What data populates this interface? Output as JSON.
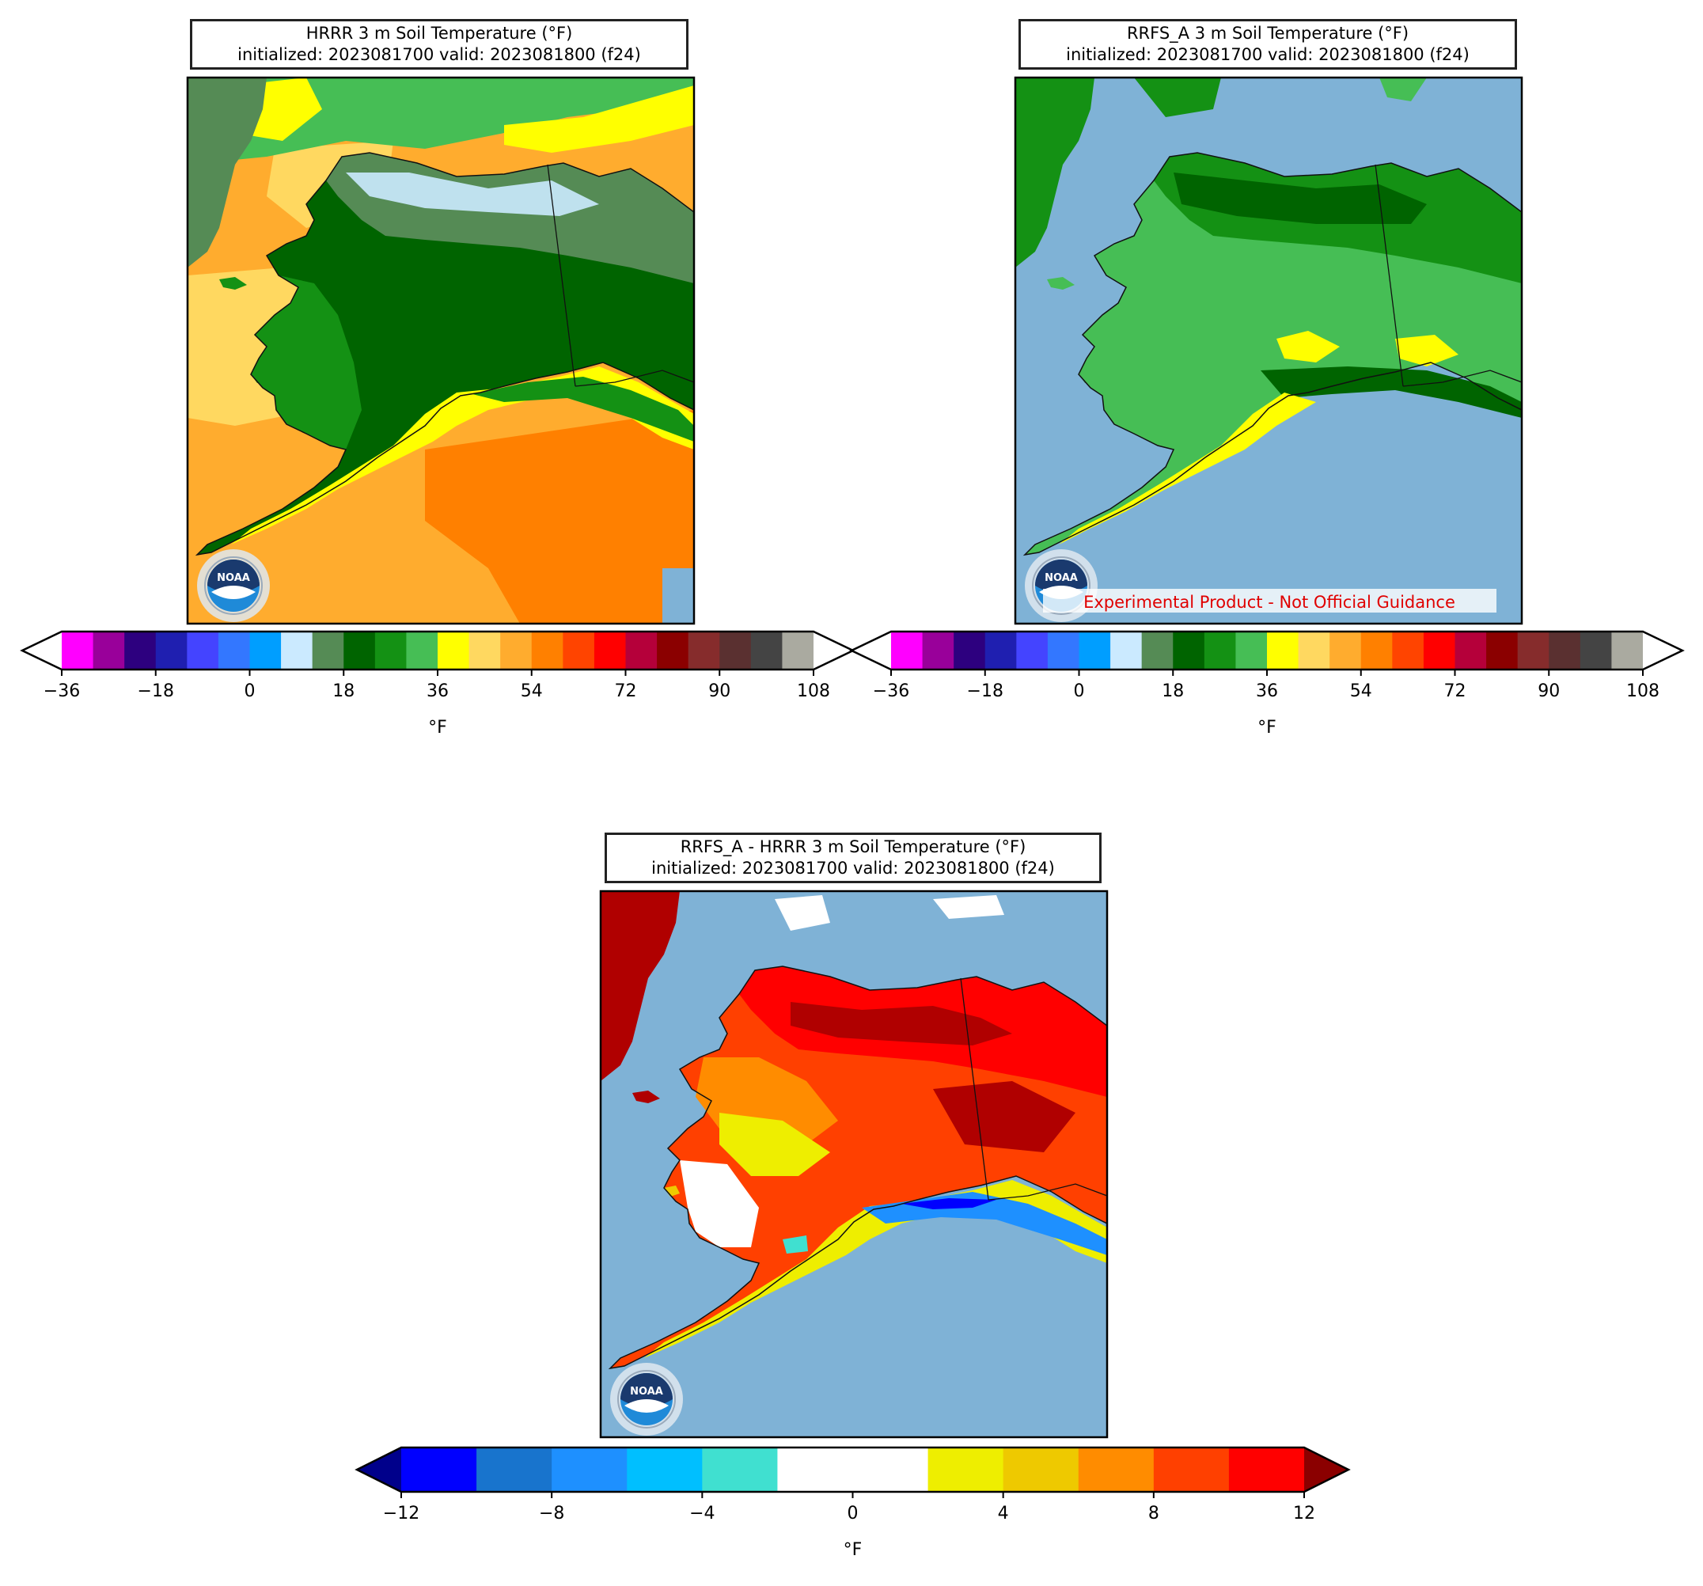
{
  "panels": [
    {
      "id": "hrrr",
      "title_line1": "HRRR 3 m Soil Temperature (°F)",
      "title_line2": "initialized: 2023081700 valid: 2023081800 (f24)",
      "logo_text": "NOAA",
      "watermark": "",
      "colorbar_unit": "°F",
      "colorbar_ticks": [
        "−36",
        "−18",
        "0",
        "18",
        "36",
        "54",
        "72",
        "90",
        "108"
      ],
      "colorbar_tick_values": [
        -36,
        -18,
        0,
        18,
        36,
        54,
        72,
        90,
        108
      ]
    },
    {
      "id": "rrfs",
      "title_line1": "RRFS_A 3 m Soil Temperature (°F)",
      "title_line2": "initialized: 2023081700 valid: 2023081800 (f24)",
      "logo_text": "NOAA",
      "watermark": "Experimental Product - Not Official Guidance",
      "colorbar_unit": "°F",
      "colorbar_ticks": [
        "−36",
        "−18",
        "0",
        "18",
        "36",
        "54",
        "72",
        "90",
        "108"
      ],
      "colorbar_tick_values": [
        -36,
        -18,
        0,
        18,
        36,
        54,
        72,
        90,
        108
      ]
    },
    {
      "id": "diff",
      "title_line1": "RRFS_A - HRRR 3 m Soil Temperature (°F)",
      "title_line2": "initialized: 2023081700 valid: 2023081800 (f24)",
      "logo_text": "NOAA",
      "watermark": "",
      "colorbar_unit": "°F",
      "colorbar_ticks": [
        "−12",
        "−8",
        "−4",
        "0",
        "4",
        "8",
        "12"
      ],
      "colorbar_tick_values": [
        -12,
        -8,
        -4,
        0,
        4,
        8,
        12
      ]
    }
  ],
  "temperature_scale": {
    "min": -36,
    "max": 108,
    "step": 6,
    "colors": [
      "#ff00ff",
      "#99009a",
      "#2d007f",
      "#1f1fb0",
      "#4444ff",
      "#3377ff",
      "#009eff",
      "#cbeaff",
      "#558b55",
      "#006400",
      "#149114",
      "#46be55",
      "#ffff00",
      "#ffd860",
      "#ffac2e",
      "#ff8000",
      "#ff4400",
      "#ff0000",
      "#b5003a",
      "#8b0000",
      "#862c2c",
      "#5a3030",
      "#444444",
      "#aaaaa0"
    ],
    "under_color": "#ffffff",
    "over_color": "#ffffff"
  },
  "difference_scale": {
    "min": -12,
    "max": 12,
    "step": 2,
    "colors": [
      "#0000ff",
      "#1874cd",
      "#1e90ff",
      "#00bfff",
      "#40e0d0",
      "#ffffff",
      "#ffffff",
      "#eeee00",
      "#eec900",
      "#ff8c00",
      "#ff4000",
      "#ff0000"
    ],
    "under_color": "#00008b",
    "over_color": "#8b0000"
  },
  "colors": {
    "ocean": "#7fb2d6",
    "hrrr_ocean_cool": "#ffac2e",
    "hrrr_ocean_warm": "#ff8000",
    "hrrr_ocean_cold": "#ffd860",
    "land_dark_green": "#006400",
    "land_mid_green": "#149114",
    "land_light_green": "#46be55",
    "coast_yellow": "#ffff00",
    "diff_red": "#ff0000",
    "diff_darkred": "#b00000",
    "diff_orange": "#ff8c00",
    "diff_yellow": "#eeee00"
  }
}
